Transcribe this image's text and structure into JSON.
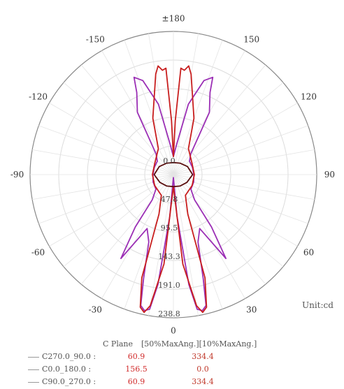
{
  "chart_data": {
    "type": "polar-line",
    "angle_ticks": [
      {
        "angle": 180,
        "label": "±180"
      },
      {
        "angle": 150,
        "label": "150"
      },
      {
        "angle": 120,
        "label": "120"
      },
      {
        "angle": 90,
        "label": "90"
      },
      {
        "angle": 60,
        "label": "60"
      },
      {
        "angle": 30,
        "label": "30"
      },
      {
        "angle": 0,
        "label": "0"
      },
      {
        "angle": -30,
        "label": "-30"
      },
      {
        "angle": -60,
        "label": "-60"
      },
      {
        "angle": -90,
        "label": "-90"
      },
      {
        "angle": -120,
        "label": "-120"
      },
      {
        "angle": -150,
        "label": "-150"
      }
    ],
    "radial_ticks": [
      {
        "value": 0,
        "label": "0.0"
      },
      {
        "value": 47.8,
        "label": "47.8"
      },
      {
        "value": 95.5,
        "label": "95.5"
      },
      {
        "value": 143.3,
        "label": "143.3"
      },
      {
        "value": 191.0,
        "label": "191.0"
      },
      {
        "value": 238.8,
        "label": "238.8"
      }
    ],
    "r_max": 238.8,
    "unit": "Unit:cd",
    "series": [
      {
        "name": "C270.0_90.0",
        "color": "#9b2fb5",
        "points": [
          [
            0,
            5
          ],
          [
            5,
            70
          ],
          [
            8,
            185
          ],
          [
            10,
            228
          ],
          [
            12,
            232
          ],
          [
            14,
            225
          ],
          [
            16,
            180
          ],
          [
            20,
            120
          ],
          [
            26,
            100
          ],
          [
            32,
            165
          ],
          [
            36,
            108
          ],
          [
            40,
            55
          ],
          [
            50,
            38
          ],
          [
            70,
            36
          ],
          [
            90,
            34
          ],
          [
            110,
            34
          ],
          [
            130,
            35
          ],
          [
            140,
            45
          ],
          [
            150,
            120
          ],
          [
            156,
            150
          ],
          [
            158,
            175
          ],
          [
            162,
            165
          ],
          [
            168,
            120
          ],
          [
            174,
            50
          ],
          [
            180,
            30
          ],
          [
            186,
            50
          ],
          [
            192,
            120
          ],
          [
            198,
            165
          ],
          [
            202,
            175
          ],
          [
            204,
            150
          ],
          [
            210,
            120
          ],
          [
            220,
            45
          ],
          [
            230,
            35
          ],
          [
            250,
            34
          ],
          [
            270,
            34
          ],
          [
            290,
            36
          ],
          [
            310,
            38
          ],
          [
            320,
            55
          ],
          [
            324,
            108
          ],
          [
            328,
            165
          ],
          [
            334,
            100
          ],
          [
            340,
            120
          ],
          [
            344,
            180
          ],
          [
            346,
            225
          ],
          [
            348,
            232
          ],
          [
            350,
            228
          ],
          [
            352,
            185
          ],
          [
            355,
            70
          ],
          [
            360,
            5
          ]
        ]
      },
      {
        "name": "C0.0_180.0",
        "color": "#c81e1e",
        "points": [
          [
            0,
            20
          ],
          [
            6,
            150
          ],
          [
            10,
            222
          ],
          [
            12,
            235
          ],
          [
            14,
            228
          ],
          [
            17,
            180
          ],
          [
            20,
            70
          ],
          [
            30,
            40
          ],
          [
            60,
            36
          ],
          [
            90,
            35
          ],
          [
            120,
            36
          ],
          [
            150,
            50
          ],
          [
            160,
            100
          ],
          [
            170,
            170
          ],
          [
            172,
            183
          ],
          [
            174,
            175
          ],
          [
            176,
            178
          ],
          [
            178,
            90
          ],
          [
            180,
            30
          ],
          [
            182,
            90
          ],
          [
            184,
            178
          ],
          [
            186,
            175
          ],
          [
            188,
            183
          ],
          [
            190,
            170
          ],
          [
            200,
            100
          ],
          [
            210,
            50
          ],
          [
            240,
            36
          ],
          [
            270,
            35
          ],
          [
            300,
            36
          ],
          [
            330,
            40
          ],
          [
            340,
            70
          ],
          [
            343,
            180
          ],
          [
            346,
            228
          ],
          [
            348,
            235
          ],
          [
            350,
            222
          ],
          [
            354,
            150
          ],
          [
            360,
            20
          ]
        ]
      },
      {
        "name": "C90.0_270.0",
        "color": "#5a0f0f",
        "points": [
          [
            0,
            20
          ],
          [
            30,
            22
          ],
          [
            60,
            26
          ],
          [
            90,
            32
          ],
          [
            120,
            27
          ],
          [
            150,
            22
          ],
          [
            180,
            20
          ],
          [
            210,
            22
          ],
          [
            240,
            27
          ],
          [
            270,
            32
          ],
          [
            300,
            26
          ],
          [
            330,
            22
          ],
          [
            360,
            20
          ]
        ]
      }
    ],
    "legend": {
      "header_plane": "C Plane",
      "header_50": "[50%MaxAng.]",
      "header_10": "[10%MaxAng.]",
      "rows": [
        {
          "name": "C270.0_90.0 :",
          "v50": "60.9",
          "v10": "334.4"
        },
        {
          "name": "C0.0_180.0 :",
          "v50": "156.5",
          "v10": "0.0"
        },
        {
          "name": "C90.0_270.0 :",
          "v50": "60.9",
          "v10": "334.4"
        }
      ]
    }
  }
}
